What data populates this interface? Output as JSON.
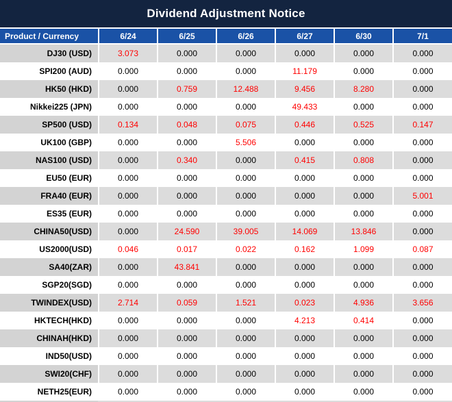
{
  "title": "Dividend Adjustment Notice",
  "colors": {
    "title_bar_bg": "#132440",
    "header_bg": "#1A52A6",
    "header_text": "#FFFFFF",
    "row_bg": "#FFFFFF",
    "row_alt_bg": "#DCDCDC",
    "row_alt_label_bg": "#D3D3D3",
    "zero_text": "#000000",
    "nonzero_text": "#FF0000"
  },
  "chart_data": {
    "type": "table",
    "title": "Dividend Adjustment Notice",
    "columns": [
      "Product / Currency",
      "6/24",
      "6/25",
      "6/26",
      "6/27",
      "6/30",
      "7/1"
    ],
    "rows": [
      {
        "label": "DJ30 (USD)",
        "values": [
          "3.073",
          "0.000",
          "0.000",
          "0.000",
          "0.000",
          "0.000"
        ]
      },
      {
        "label": "SPI200 (AUD)",
        "values": [
          "0.000",
          "0.000",
          "0.000",
          "11.179",
          "0.000",
          "0.000"
        ]
      },
      {
        "label": "HK50 (HKD)",
        "values": [
          "0.000",
          "0.759",
          "12.488",
          "9.456",
          "8.280",
          "0.000"
        ]
      },
      {
        "label": "Nikkei225 (JPN)",
        "values": [
          "0.000",
          "0.000",
          "0.000",
          "49.433",
          "0.000",
          "0.000"
        ]
      },
      {
        "label": "SP500 (USD)",
        "values": [
          "0.134",
          "0.048",
          "0.075",
          "0.446",
          "0.525",
          "0.147"
        ]
      },
      {
        "label": "UK100 (GBP)",
        "values": [
          "0.000",
          "0.000",
          "5.506",
          "0.000",
          "0.000",
          "0.000"
        ]
      },
      {
        "label": "NAS100 (USD)",
        "values": [
          "0.000",
          "0.340",
          "0.000",
          "0.415",
          "0.808",
          "0.000"
        ]
      },
      {
        "label": "EU50 (EUR)",
        "values": [
          "0.000",
          "0.000",
          "0.000",
          "0.000",
          "0.000",
          "0.000"
        ]
      },
      {
        "label": "FRA40 (EUR)",
        "values": [
          "0.000",
          "0.000",
          "0.000",
          "0.000",
          "0.000",
          "5.001"
        ]
      },
      {
        "label": "ES35 (EUR)",
        "values": [
          "0.000",
          "0.000",
          "0.000",
          "0.000",
          "0.000",
          "0.000"
        ]
      },
      {
        "label": "CHINA50(USD)",
        "values": [
          "0.000",
          "24.590",
          "39.005",
          "14.069",
          "13.846",
          "0.000"
        ]
      },
      {
        "label": "US2000(USD)",
        "values": [
          "0.046",
          "0.017",
          "0.022",
          "0.162",
          "1.099",
          "0.087"
        ]
      },
      {
        "label": "SA40(ZAR)",
        "values": [
          "0.000",
          "43.841",
          "0.000",
          "0.000",
          "0.000",
          "0.000"
        ]
      },
      {
        "label": "SGP20(SGD)",
        "values": [
          "0.000",
          "0.000",
          "0.000",
          "0.000",
          "0.000",
          "0.000"
        ]
      },
      {
        "label": "TWINDEX(USD)",
        "values": [
          "2.714",
          "0.059",
          "1.521",
          "0.023",
          "4.936",
          "3.656"
        ]
      },
      {
        "label": "HKTECH(HKD)",
        "values": [
          "0.000",
          "0.000",
          "0.000",
          "4.213",
          "0.414",
          "0.000"
        ]
      },
      {
        "label": "CHINAH(HKD)",
        "values": [
          "0.000",
          "0.000",
          "0.000",
          "0.000",
          "0.000",
          "0.000"
        ]
      },
      {
        "label": "IND50(USD)",
        "values": [
          "0.000",
          "0.000",
          "0.000",
          "0.000",
          "0.000",
          "0.000"
        ]
      },
      {
        "label": "SWI20(CHF)",
        "values": [
          "0.000",
          "0.000",
          "0.000",
          "0.000",
          "0.000",
          "0.000"
        ]
      },
      {
        "label": "NETH25(EUR)",
        "values": [
          "0.000",
          "0.000",
          "0.000",
          "0.000",
          "0.000",
          "0.000"
        ]
      }
    ]
  }
}
